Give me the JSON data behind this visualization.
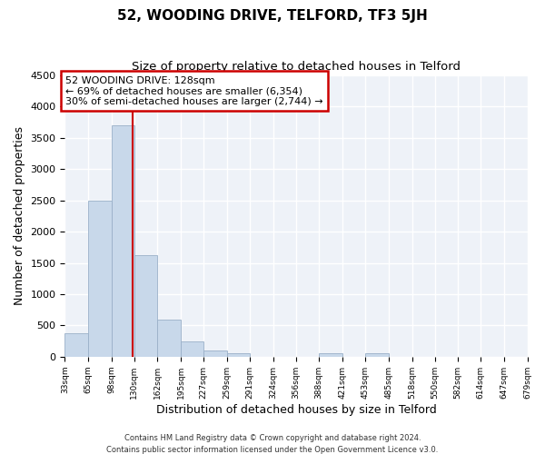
{
  "title": "52, WOODING DRIVE, TELFORD, TF3 5JH",
  "subtitle": "Size of property relative to detached houses in Telford",
  "xlabel": "Distribution of detached houses by size in Telford",
  "ylabel": "Number of detached properties",
  "bar_color": "#c8d8ea",
  "bar_edge_color": "#9ab0c8",
  "background_color": "#eef2f8",
  "grid_color": "#ffffff",
  "vline_x": 128,
  "vline_color": "#cc0000",
  "annotation_title": "52 WOODING DRIVE: 128sqm",
  "annotation_line1": "← 69% of detached houses are smaller (6,354)",
  "annotation_line2": "30% of semi-detached houses are larger (2,744) →",
  "annotation_box_edgecolor": "#cc0000",
  "bin_edges": [
    33,
    65,
    98,
    130,
    162,
    195,
    227,
    259,
    291,
    324,
    356,
    388,
    421,
    453,
    485,
    518,
    550,
    582,
    614,
    647,
    679
  ],
  "bar_heights": [
    380,
    2500,
    3700,
    1620,
    600,
    240,
    100,
    60,
    0,
    0,
    0,
    55,
    0,
    55,
    0,
    0,
    0,
    0,
    0,
    0
  ],
  "ylim": [
    0,
    4500
  ],
  "yticks": [
    0,
    500,
    1000,
    1500,
    2000,
    2500,
    3000,
    3500,
    4000,
    4500
  ],
  "footnote1": "Contains HM Land Registry data © Crown copyright and database right 2024.",
  "footnote2": "Contains public sector information licensed under the Open Government Licence v3.0."
}
